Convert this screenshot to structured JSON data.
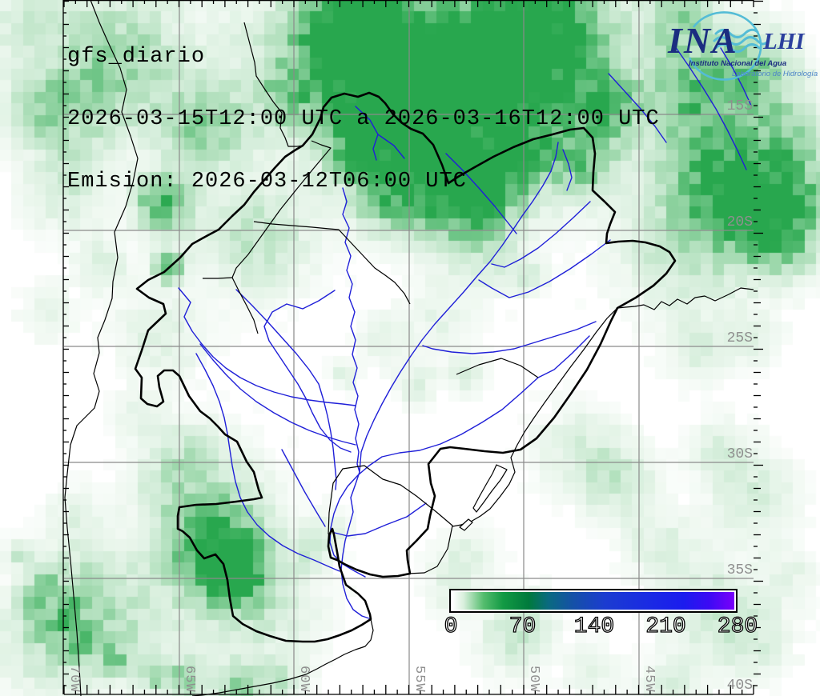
{
  "title": {
    "product": "gfs_diario",
    "period": "2026-03-15T12:00 UTC a 2026-03-16T12:00 UTC",
    "emission": "Emision: 2026-03-12T06:00 UTC"
  },
  "logo": {
    "acronym": "INA",
    "unit": "LHI",
    "org_name": "Instituto Nacional del Agua",
    "lab_name": "Laboratorio de Hidrología"
  },
  "axes": {
    "lat_labels": [
      "15S",
      "20S",
      "25S",
      "30S",
      "35S",
      "40S"
    ],
    "lon_labels": [
      "70W",
      "65W",
      "60W",
      "55W",
      "50W",
      "45W"
    ]
  },
  "colorbar": {
    "tick_labels": [
      "0",
      "70",
      "140",
      "210",
      "280"
    ],
    "min": 0,
    "max": 280,
    "gradient_stops": [
      "#ffffff",
      "#15a046",
      "#007a3c",
      "#1550a8",
      "#1b2ae0",
      "#7a00fa"
    ]
  },
  "colors": {
    "precip_light": "#dff2e3",
    "precip_dark": "#28a74e",
    "river": "#1f1fd8",
    "border": "#000000",
    "grid": "#8a8a8a",
    "axis_label": "#8f8f8f"
  }
}
